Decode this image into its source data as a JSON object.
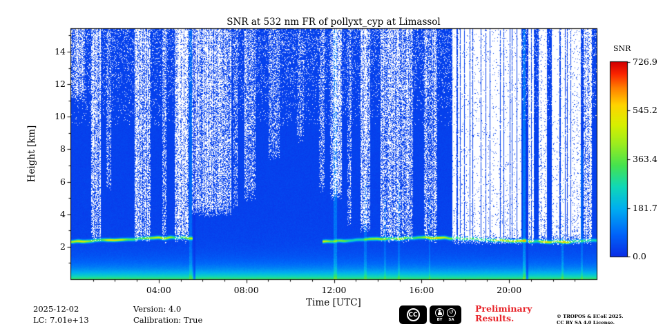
{
  "chart_data": {
    "type": "heatmap",
    "title": "SNR at 532 nm FR of pollyxt_cyp at Limassol",
    "xlabel": "Time [UTC]",
    "ylabel": "Height [km]",
    "x_range_hours": [
      0,
      24
    ],
    "y_range_km": [
      0,
      15.4
    ],
    "x_tick_hours": [
      4,
      8,
      12,
      16,
      20
    ],
    "x_tick_labels": [
      "04:00",
      "08:00",
      "12:00",
      "16:00",
      "20:00"
    ],
    "y_tick_km": [
      2,
      4,
      6,
      8,
      10,
      12,
      14
    ],
    "y_tick_labels": [
      "2",
      "4",
      "6",
      "8",
      "10",
      "12",
      "14"
    ],
    "colorbar": {
      "label": "SNR",
      "vmin": 0,
      "vmax": 726.9,
      "tick_values": [
        0,
        181.7,
        363.4,
        545.2,
        726.9
      ],
      "tick_labels": [
        "0.0",
        "181.7",
        "363.4",
        "545.2",
        "726.9"
      ],
      "stops": [
        {
          "p": 0,
          "c": "#0a2de6"
        },
        {
          "p": 0.12,
          "c": "#0066fa"
        },
        {
          "p": 0.25,
          "c": "#00b0f0"
        },
        {
          "p": 0.36,
          "c": "#10d8b8"
        },
        {
          "p": 0.47,
          "c": "#46e34f"
        },
        {
          "p": 0.58,
          "c": "#9ced20"
        },
        {
          "p": 0.68,
          "c": "#d8f000"
        },
        {
          "p": 0.78,
          "c": "#ffd500"
        },
        {
          "p": 0.87,
          "c": "#ff7d00"
        },
        {
          "p": 0.94,
          "c": "#fb2500"
        },
        {
          "p": 1,
          "c": "#d40000"
        }
      ]
    },
    "nodata_color": "#ffffff",
    "render": {
      "seed": 42,
      "base_snr": 22,
      "base_noise": 20,
      "surface": {
        "amp": 310,
        "scale_km": 0.6
      },
      "layer": {
        "height_km": 2.45,
        "sigma_km": 0.09,
        "amp_min": 230,
        "amp_var": 320,
        "segments": [
          [
            0,
            5.55
          ],
          [
            11.45,
            24
          ]
        ]
      },
      "nodata_bands": [
        [
          0,
          0.6,
          0.45,
          11.5
        ],
        [
          0.9,
          1.35,
          0.5,
          2.9
        ],
        [
          1.6,
          1.8,
          0.3,
          6
        ],
        [
          2.9,
          3.6,
          0.55,
          2.9
        ],
        [
          4.15,
          4.35,
          0.4,
          2.9
        ],
        [
          4.7,
          5.35,
          0.6,
          2.9
        ],
        [
          5.5,
          7.3,
          0.5,
          4.5
        ],
        [
          7.4,
          7.6,
          0.35,
          5
        ],
        [
          7.9,
          8.4,
          0.45,
          5.5
        ],
        [
          9.0,
          9.5,
          0.3,
          8
        ],
        [
          10.3,
          10.6,
          0.25,
          9
        ],
        [
          11.3,
          11.55,
          0.35,
          6
        ],
        [
          11.8,
          12.35,
          0.55,
          5.5
        ],
        [
          12.6,
          12.8,
          0.35,
          4
        ],
        [
          13.2,
          13.65,
          0.5,
          3.5
        ],
        [
          14.1,
          15.6,
          0.5,
          2.9
        ],
        [
          16.1,
          16.7,
          0.45,
          2.9
        ],
        [
          17.4,
          20.55,
          0.88,
          2.8
        ],
        [
          20.85,
          21.15,
          0.75,
          2.8
        ],
        [
          21.35,
          21.7,
          0.75,
          2.8
        ],
        [
          21.95,
          23.25,
          0.8,
          2.8
        ],
        [
          23.4,
          23.75,
          0.65,
          2.8
        ]
      ],
      "bright_streaks": [
        [
          5.45,
          0.12,
          15.4,
          70
        ],
        [
          12.05,
          0.14,
          15.4,
          90
        ],
        [
          13.42,
          0.1,
          6,
          70
        ],
        [
          14.32,
          0.08,
          5,
          55
        ],
        [
          14.95,
          0.1,
          6,
          60
        ],
        [
          16.35,
          0.08,
          5,
          55
        ],
        [
          20.68,
          0.12,
          15.4,
          95
        ],
        [
          22.42,
          0.1,
          15.4,
          80
        ],
        [
          23.3,
          0.08,
          8,
          60
        ]
      ],
      "dark_streaks": [
        [
          5.62,
          0.1
        ],
        [
          20.82,
          0.1
        ]
      ],
      "high_alt_speckle": {
        "start_km": 9.5,
        "base": 0.03,
        "slope": 0.1
      }
    }
  },
  "footer": {
    "date": "2025-12-02",
    "lc": "LC: 7.01e+13",
    "version": "Version: 4.0",
    "calibration": "Calibration: True",
    "preliminary": {
      "line1": "Preliminary",
      "line2": "Results.",
      "color": "#e8242a"
    },
    "license": {
      "line1": "© TROPOS & ECoE 2025.",
      "line2": "CC BY SA 4.0 License."
    },
    "badges": {
      "cc": "CC",
      "by": "BY",
      "sa": "SA"
    },
    "icons": {
      "sa_glyph": "↺"
    }
  }
}
